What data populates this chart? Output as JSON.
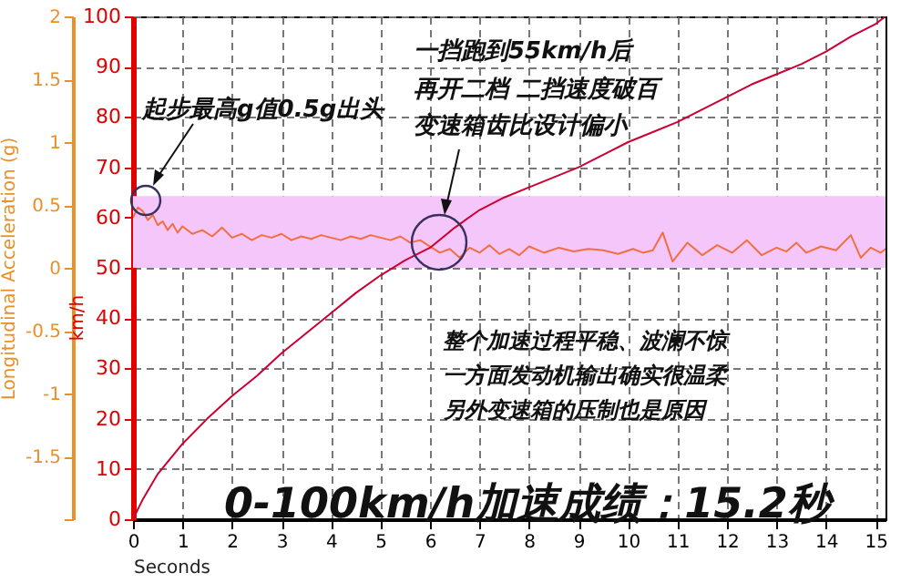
{
  "chart_data": {
    "type": "line",
    "xlabel": "Seconds",
    "ylabel": "km/h",
    "y2label": "Longitudinal Acceleration (g)",
    "x": [
      0,
      0.2,
      0.5,
      1,
      1.5,
      2,
      2.5,
      3,
      3.5,
      4,
      4.5,
      5,
      5.5,
      6,
      6.5,
      7,
      7.5,
      8,
      8.5,
      9,
      9.5,
      10,
      10.5,
      11,
      11.5,
      12,
      12.5,
      13,
      13.5,
      14,
      14.5,
      15,
      15.2
    ],
    "series": [
      {
        "color": "#cc0033",
        "values": [
          0,
          4,
          9,
          15,
          20,
          24.5,
          28.5,
          33,
          37,
          41,
          45,
          48.5,
          51.5,
          54,
          58,
          61.5,
          64,
          66,
          68,
          70,
          72.5,
          75,
          77,
          79,
          81.5,
          84,
          86.5,
          88.5,
          90.5,
          93,
          96,
          98.5,
          100
        ]
      },
      {
        "color": "#f07040",
        "axis": "y2",
        "x": [
          0,
          0.1,
          0.2,
          0.3,
          0.4,
          0.5,
          0.6,
          0.7,
          0.8,
          0.9,
          1,
          1.2,
          1.4,
          1.6,
          1.8,
          2,
          2.2,
          2.4,
          2.6,
          2.8,
          3,
          3.2,
          3.4,
          3.6,
          3.8,
          4,
          4.2,
          4.4,
          4.6,
          4.8,
          5,
          5.2,
          5.4,
          5.6,
          5.8,
          6,
          6.2,
          6.4,
          6.6,
          6.8,
          7,
          7.2,
          7.4,
          7.6,
          7.8,
          8,
          8.3,
          8.6,
          8.9,
          9.2,
          9.5,
          9.8,
          10.1,
          10.3,
          10.5,
          10.7,
          10.9,
          11.2,
          11.5,
          11.8,
          12.1,
          12.4,
          12.7,
          13,
          13.2,
          13.4,
          13.6,
          13.9,
          14.2,
          14.5,
          14.7,
          14.9,
          15.1,
          15.2
        ],
        "values": [
          0.4,
          0.48,
          0.45,
          0.38,
          0.42,
          0.34,
          0.37,
          0.3,
          0.35,
          0.28,
          0.33,
          0.27,
          0.3,
          0.25,
          0.32,
          0.24,
          0.27,
          0.22,
          0.26,
          0.24,
          0.27,
          0.22,
          0.25,
          0.23,
          0.26,
          0.24,
          0.22,
          0.25,
          0.23,
          0.26,
          0.24,
          0.22,
          0.25,
          0.2,
          0.22,
          0.17,
          0.12,
          0.15,
          0.08,
          0.16,
          0.12,
          0.18,
          0.11,
          0.15,
          0.1,
          0.17,
          0.12,
          0.16,
          0.13,
          0.15,
          0.14,
          0.11,
          0.15,
          0.12,
          0.14,
          0.28,
          0.05,
          0.2,
          0.1,
          0.18,
          0.12,
          0.22,
          0.1,
          0.16,
          0.13,
          0.2,
          0.12,
          0.17,
          0.14,
          0.26,
          0.08,
          0.16,
          0.12,
          0.15
        ]
      }
    ],
    "xlim": [
      0,
      15.2
    ],
    "xticks": [
      0,
      1,
      2,
      3,
      4,
      5,
      6,
      7,
      8,
      9,
      10,
      11,
      12,
      13,
      14,
      15
    ],
    "ylim": [
      0,
      100
    ],
    "yticks": [
      0,
      10,
      20,
      30,
      40,
      50,
      60,
      70,
      80,
      90,
      100
    ],
    "y2lim": [
      -2,
      2
    ],
    "y2ticks": [
      {
        "value": -2,
        "label": null
      },
      -1.5,
      -1,
      -0.5,
      0,
      0.5,
      1,
      1.5,
      2
    ],
    "bands": [
      {
        "axis": "y2",
        "from": 0,
        "to": 0.57,
        "color": "#f4c6fa"
      }
    ],
    "grid": true,
    "marker": "none",
    "line_style": "solid",
    "annotations": [
      "起步最高g值0.5g出头",
      "一挡跑到55km/h后",
      "再开二档  二挡速度破百",
      "变速箱齿比设计偏小",
      "整个加速过程平稳、波澜不惊",
      "一方面发动机输出确实很温柔",
      "另外变速箱的压制也是原因",
      "0-100km/h加速成绩：15.2秒"
    ]
  }
}
